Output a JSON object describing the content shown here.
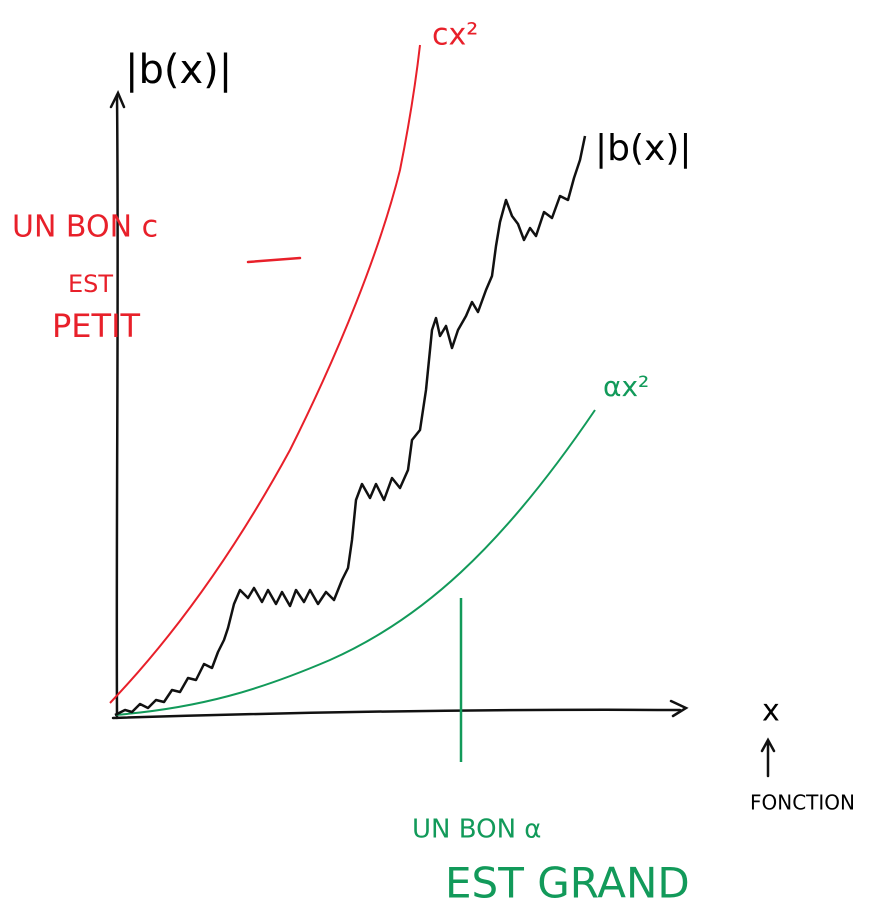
{
  "axes": {
    "y_label": "|b(x)|",
    "x_label": "x",
    "x_note": "FONCTION"
  },
  "curves": {
    "upper": "cx²",
    "middle": "|b(x)|",
    "lower": "αx²"
  },
  "notes": {
    "red": [
      "UN BON c",
      "EST",
      "PETIT"
    ],
    "green": [
      "UN BON α",
      "EST GRAND"
    ]
  }
}
